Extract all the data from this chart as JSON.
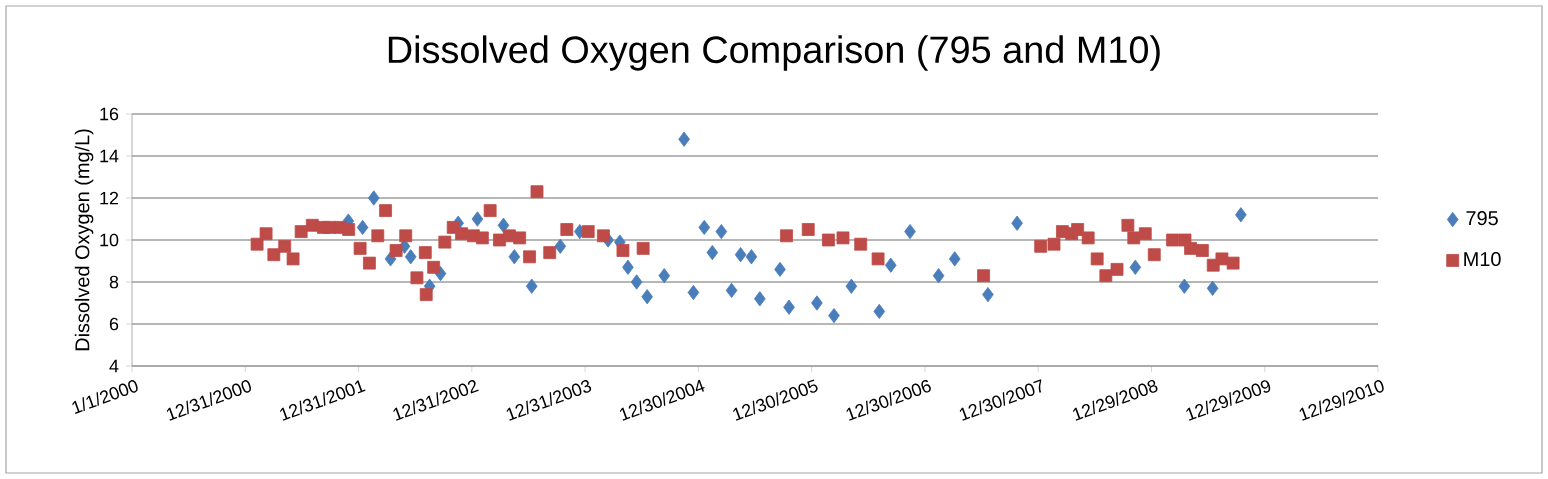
{
  "chart_data": {
    "type": "scatter",
    "title": "Dissolved Oxygen Comparison (795 and M10)",
    "ylabel": "Dissolved Oxygen (mg/L)",
    "xlim": [
      "2000-01-01",
      "2010-12-29"
    ],
    "xticks": [
      {
        "value": "2000-01-01",
        "label": "1/1/2000"
      },
      {
        "value": "2000-12-31",
        "label": "12/31/2000"
      },
      {
        "value": "2001-12-31",
        "label": "12/31/2001"
      },
      {
        "value": "2002-12-31",
        "label": "12/31/2002"
      },
      {
        "value": "2003-12-31",
        "label": "12/31/2003"
      },
      {
        "value": "2004-12-30",
        "label": "12/30/2004"
      },
      {
        "value": "2005-12-30",
        "label": "12/30/2005"
      },
      {
        "value": "2006-12-30",
        "label": "12/30/2006"
      },
      {
        "value": "2007-12-30",
        "label": "12/30/2007"
      },
      {
        "value": "2008-12-29",
        "label": "12/29/2008"
      },
      {
        "value": "2009-12-29",
        "label": "12/29/2009"
      },
      {
        "value": "2010-12-29",
        "label": "12/29/2010"
      }
    ],
    "ylim": [
      4,
      16
    ],
    "yticks": [
      4,
      6,
      8,
      10,
      12,
      14,
      16
    ],
    "grid": "y",
    "legend": "right",
    "series": [
      {
        "name": "795",
        "color": "#4a7ebb",
        "marker": "diamond",
        "x": [
          "2001-11-28",
          "2002-01-13",
          "2002-02-18",
          "2002-04-13",
          "2002-05-28",
          "2002-06-17",
          "2002-08-17",
          "2002-09-21",
          "2002-10-16",
          "2002-11-17",
          "2003-01-18",
          "2003-04-12",
          "2003-05-17",
          "2003-07-12",
          "2003-10-12",
          "2003-12-14",
          "2004-01-16",
          "2004-03-14",
          "2004-04-21",
          "2004-05-17",
          "2004-06-14",
          "2004-07-18",
          "2004-09-11",
          "2004-11-14",
          "2004-12-14",
          "2005-01-18",
          "2005-02-13",
          "2005-03-14",
          "2005-04-16",
          "2005-05-15",
          "2005-06-19",
          "2005-07-16",
          "2005-09-19",
          "2005-10-18",
          "2006-01-16",
          "2006-03-12",
          "2006-05-07",
          "2006-08-05",
          "2006-09-11",
          "2006-11-12",
          "2007-02-12",
          "2007-04-05",
          "2007-07-21",
          "2007-10-23",
          "2008-11-07",
          "2009-04-14",
          "2009-07-14",
          "2009-09-09",
          "2009-10-13"
        ],
        "values": [
          10.9,
          10.6,
          12.0,
          9.1,
          9.7,
          9.2,
          7.8,
          8.4,
          null,
          10.8,
          11.0,
          10.7,
          9.2,
          7.8,
          9.7,
          10.4,
          null,
          10.0,
          9.9,
          8.7,
          8.0,
          7.3,
          8.3,
          14.8,
          7.5,
          10.6,
          9.4,
          10.4,
          7.6,
          9.3,
          9.2,
          7.2,
          8.6,
          6.8,
          7.0,
          6.4,
          7.8,
          6.6,
          8.8,
          10.4,
          8.3,
          9.1,
          7.4,
          10.8,
          8.7,
          7.8,
          7.7,
          null,
          11.2
        ]
      },
      {
        "name": "M10",
        "color": "#be4b48",
        "marker": "square",
        "x": [
          "2001-02-07",
          "2001-03-08",
          "2001-04-02",
          "2001-05-07",
          "2001-06-03",
          "2001-06-29",
          "2001-08-04",
          "2001-09-09",
          "2001-09-28",
          "2001-11-02",
          "2001-11-29",
          "2002-01-05",
          "2002-02-04",
          "2002-03-03",
          "2002-03-28",
          "2002-05-01",
          "2002-06-01",
          "2002-07-07",
          "2002-08-03",
          "2002-08-06",
          "2002-08-30",
          "2002-10-05",
          "2002-11-01",
          "2002-11-28",
          "2003-01-05",
          "2003-02-03",
          "2003-02-28",
          "2003-03-30",
          "2003-05-01",
          "2003-06-03",
          "2003-07-05",
          "2003-07-29",
          "2003-09-08",
          "2003-11-02",
          "2004-01-10",
          "2004-02-28",
          "2004-05-01",
          "2004-07-05",
          "2005-10-10",
          "2005-12-19",
          "2006-02-22",
          "2006-04-10",
          "2006-06-06",
          "2006-08-01",
          "2007-07-07",
          "2008-01-07",
          "2008-02-19",
          "2008-03-17",
          "2008-04-16",
          "2008-05-05",
          "2008-06-08",
          "2008-07-07",
          "2008-08-04",
          "2008-09-09",
          "2008-10-14",
          "2008-11-02",
          "2008-12-09",
          "2009-01-07",
          "2009-03-07",
          "2009-04-16",
          "2009-05-04",
          "2009-06-11",
          "2009-07-16",
          "2009-08-13",
          "2009-09-18"
        ],
        "values": [
          9.8,
          10.3,
          9.3,
          9.7,
          9.1,
          10.4,
          10.7,
          10.6,
          10.6,
          10.6,
          10.5,
          9.6,
          8.9,
          10.2,
          11.4,
          9.5,
          10.2,
          8.2,
          9.4,
          7.4,
          8.7,
          9.9,
          10.6,
          10.3,
          10.2,
          10.1,
          11.4,
          10.0,
          10.2,
          10.1,
          9.2,
          12.3,
          9.4,
          10.5,
          10.4,
          10.2,
          9.5,
          9.6,
          10.2,
          10.5,
          10.0,
          10.1,
          9.8,
          9.1,
          8.3,
          9.7,
          9.8,
          10.4,
          10.3,
          10.5,
          10.1,
          9.1,
          8.3,
          8.6,
          10.7,
          10.1,
          10.3,
          9.3,
          10.0,
          10.0,
          9.6,
          9.5,
          8.8,
          9.1,
          8.9
        ]
      }
    ]
  }
}
